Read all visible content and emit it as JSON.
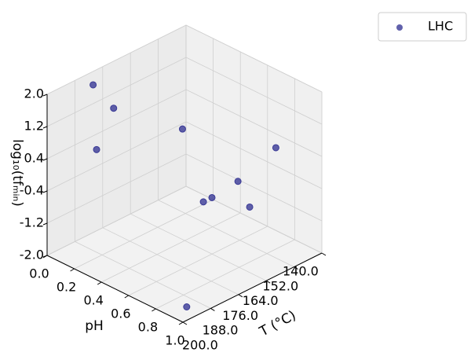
{
  "chart_data": {
    "type": "scatter3d",
    "xlabel": "T (°C)",
    "ylabel": "pH",
    "zlabel": "log₁₀(tfₘᵢₙ)",
    "xlim": [
      140,
      200
    ],
    "ylim": [
      0,
      1
    ],
    "zlim": [
      -2,
      2
    ],
    "xticks": [
      {
        "value": 140,
        "label": "140.0"
      },
      {
        "value": 152,
        "label": "152.0"
      },
      {
        "value": 164,
        "label": "164.0"
      },
      {
        "value": 176,
        "label": "176.0"
      },
      {
        "value": 188,
        "label": "188.0"
      },
      {
        "value": 200,
        "label": "200.0"
      }
    ],
    "yticks": [
      {
        "value": 0,
        "label": "0.0"
      },
      0.2,
      0.4,
      0.6,
      0.8,
      {
        "value": 1,
        "label": "1.0"
      }
    ],
    "zticks": [
      {
        "value": -2,
        "label": "-2.0"
      },
      -1.2,
      -0.4,
      0.4,
      1.2,
      {
        "value": 2,
        "label": "2.0"
      }
    ],
    "grid": true,
    "legend": "upper right",
    "series": [
      {
        "name": "LHC",
        "color": "#3a3a96",
        "x": [
          186,
          183,
          184.5,
          165,
          154,
          164.5,
          164,
          167.7,
          165.3,
          192.5
        ],
        "y": [
          0.1,
          0.2,
          0.1,
          0.4,
          0.9,
          0.8,
          0.6,
          0.6,
          0.9,
          0.9
        ],
        "z": [
          2.0,
          1.5,
          0.35,
          0.8,
          0.85,
          0.15,
          -0.6,
          -0.6,
          -0.3,
          -2.0
        ]
      }
    ]
  }
}
